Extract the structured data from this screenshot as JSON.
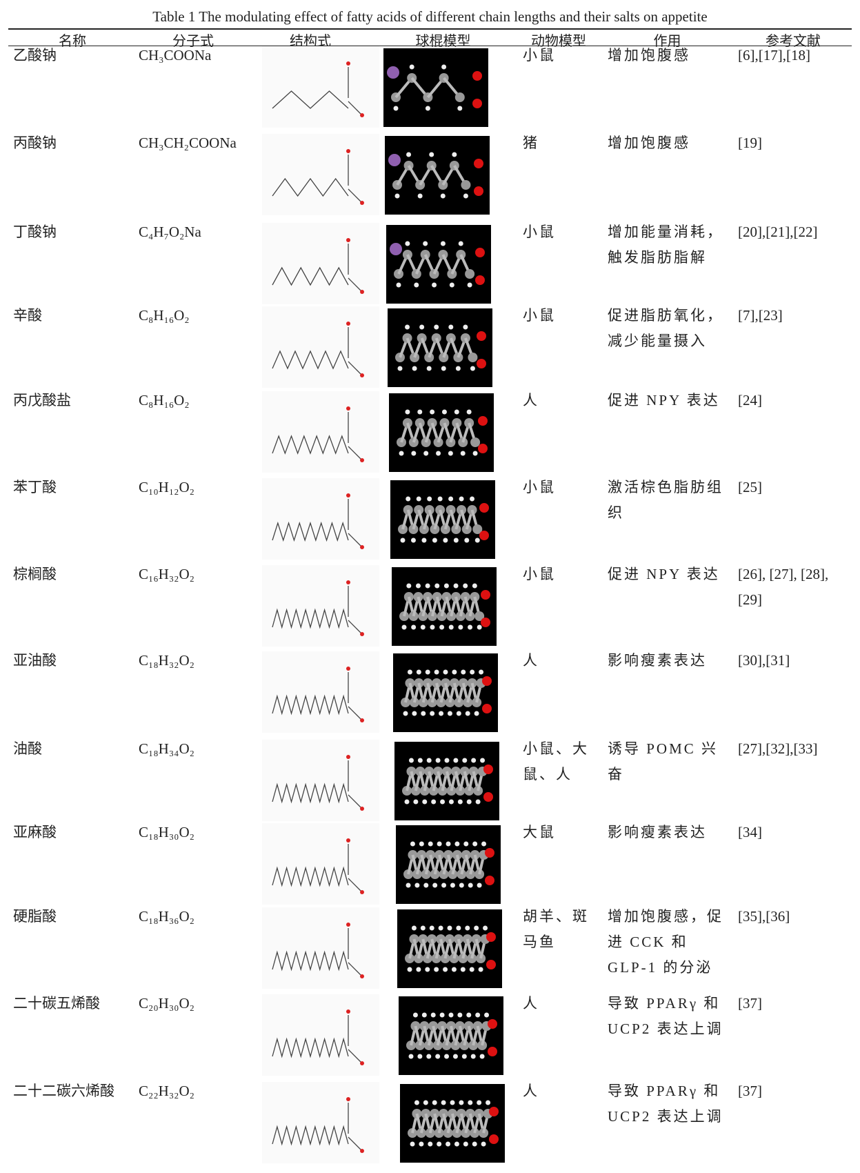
{
  "table": {
    "title": "Table 1  The modulating effect of fatty acids of different chain lengths and their salts on appetite",
    "headers": [
      "名称",
      "分子式",
      "结构式",
      "球棍模型",
      "动物模型",
      "作用",
      "参考文献"
    ],
    "rows": [
      [
        "乙酸钠",
        "CH₃COONa",
        "小鼠",
        "增加饱腹感",
        "[6],[17],[18]"
      ],
      [
        "丙酸钠",
        "CH₃CH₂COONa",
        "猪",
        "增加饱腹感",
        "[19]"
      ],
      [
        "丁酸钠",
        "C₄H₇O₂Na",
        "小鼠",
        "增加能量消耗，触发脂肪脂解",
        "[20],[21],[22]"
      ],
      [
        "辛酸",
        "C₈H₁₆O₂",
        "小鼠",
        "促进脂肪氧化，减少能量摄入",
        "[7],[23]"
      ],
      [
        "丙戊酸盐",
        "C₈H₁₆O₂",
        "人",
        "促进 NPY 表达",
        "[24]"
      ],
      [
        "苯丁酸",
        "C₁₀H₁₂O₂",
        "小鼠",
        "激活棕色脂肪组织",
        "[25]"
      ],
      [
        "棕榈酸",
        "C₁₆H₃₂O₂",
        "小鼠",
        "促进 NPY 表达",
        "[26], [27], [28], [29]"
      ],
      [
        "亚油酸",
        "C₁₈H₃₂O₂",
        "人",
        "影响瘦素表达",
        "[30],[31]"
      ],
      [
        "油酸",
        "C₁₈H₃₄O₂",
        "小鼠、大鼠、人",
        "诱导 POMC 兴奋",
        "[27],[32],[33]"
      ],
      [
        "亚麻酸",
        "C₁₈H₃₀O₂",
        "大鼠",
        "影响瘦素表达",
        "[34]"
      ],
      [
        "硬脂酸",
        "C₁₈H₃₆O₂",
        "胡羊、斑马鱼",
        "增加饱腹感，促进 CCK 和 GLP-1 的分泌",
        "[35],[36]"
      ],
      [
        "二十碳五烯酸",
        "C₂₀H₃₀O₂",
        "人",
        "导致 PPARγ 和 UCP2 表达上调",
        "[37]"
      ],
      [
        "二十二碳六烯酸",
        "C₂₂H₃₂O₂",
        "人",
        "导致 PPARγ 和 UCP2 表达上调",
        "[37]"
      ]
    ]
  }
}
